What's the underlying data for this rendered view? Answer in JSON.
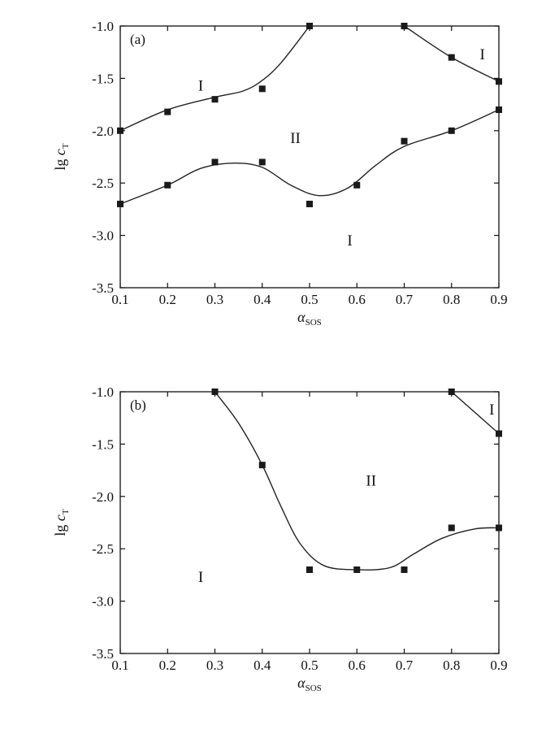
{
  "chart_data": [
    {
      "type": "scatter",
      "panel_label": "(a)",
      "xlabel_main": "α",
      "xlabel_sub": "SOS",
      "ylabel_main": "lg c",
      "ylabel_sub": "T",
      "xlim": [
        0.1,
        0.9
      ],
      "ylim": [
        -3.5,
        -1.0
      ],
      "xticks": [
        "0.1",
        "0.2",
        "0.3",
        "0.4",
        "0.5",
        "0.6",
        "0.7",
        "0.8",
        "0.9"
      ],
      "yticks": [
        "-1.0",
        "-1.5",
        "-2.0",
        "-2.5",
        "-3.0",
        "-3.5"
      ],
      "series": [
        {
          "x": [
            0.1,
            0.2,
            0.3,
            0.4,
            0.5
          ],
          "y": [
            -2.0,
            -1.82,
            -1.7,
            -1.6,
            -1.0
          ],
          "curve": [
            [
              0.1,
              -2.0
            ],
            [
              0.2,
              -1.8
            ],
            [
              0.3,
              -1.68
            ],
            [
              0.36,
              -1.62
            ],
            [
              0.4,
              -1.52
            ],
            [
              0.44,
              -1.35
            ],
            [
              0.5,
              -1.0
            ]
          ]
        },
        {
          "x": [
            0.7,
            0.8,
            0.9
          ],
          "y": [
            -1.0,
            -1.3,
            -1.53
          ],
          "curve": [
            [
              0.7,
              -1.0
            ],
            [
              0.8,
              -1.3
            ],
            [
              0.9,
              -1.53
            ]
          ]
        },
        {
          "x": [
            0.1,
            0.2,
            0.3,
            0.4,
            0.5,
            0.6,
            0.7,
            0.8,
            0.9
          ],
          "y": [
            -2.7,
            -2.52,
            -2.3,
            -2.3,
            -2.7,
            -2.52,
            -2.1,
            -2.0,
            -1.8
          ],
          "curve": [
            [
              0.1,
              -2.7
            ],
            [
              0.2,
              -2.52
            ],
            [
              0.27,
              -2.36
            ],
            [
              0.34,
              -2.31
            ],
            [
              0.4,
              -2.35
            ],
            [
              0.46,
              -2.52
            ],
            [
              0.52,
              -2.62
            ],
            [
              0.58,
              -2.55
            ],
            [
              0.64,
              -2.33
            ],
            [
              0.7,
              -2.15
            ],
            [
              0.8,
              -2.0
            ],
            [
              0.9,
              -1.8
            ]
          ]
        }
      ],
      "regions": [
        {
          "label": "I",
          "x": 0.27,
          "y": -1.57
        },
        {
          "label": "II",
          "x": 0.47,
          "y": -2.07
        },
        {
          "label": "I",
          "x": 0.585,
          "y": -3.05
        },
        {
          "label": "I",
          "x": 0.865,
          "y": -1.27
        }
      ]
    },
    {
      "type": "scatter",
      "panel_label": "(b)",
      "xlabel_main": "α",
      "xlabel_sub": "SOS",
      "ylabel_main": "lg c",
      "ylabel_sub": "T",
      "xlim": [
        0.1,
        0.9
      ],
      "ylim": [
        -3.5,
        -1.0
      ],
      "xticks": [
        "0.1",
        "0.2",
        "0.3",
        "0.4",
        "0.5",
        "0.6",
        "0.7",
        "0.8",
        "0.9"
      ],
      "yticks": [
        "-1.0",
        "-1.5",
        "-2.0",
        "-2.5",
        "-3.0",
        "-3.5"
      ],
      "series": [
        {
          "x": [
            0.3,
            0.4,
            0.5,
            0.6,
            0.7,
            0.8,
            0.9
          ],
          "y": [
            -1.0,
            -1.7,
            -2.7,
            -2.7,
            -2.7,
            -2.3,
            -2.3
          ],
          "curve": [
            [
              0.3,
              -1.0
            ],
            [
              0.35,
              -1.3
            ],
            [
              0.4,
              -1.7
            ],
            [
              0.44,
              -2.1
            ],
            [
              0.48,
              -2.45
            ],
            [
              0.53,
              -2.66
            ],
            [
              0.6,
              -2.7
            ],
            [
              0.67,
              -2.68
            ],
            [
              0.72,
              -2.55
            ],
            [
              0.78,
              -2.4
            ],
            [
              0.85,
              -2.31
            ],
            [
              0.9,
              -2.3
            ]
          ]
        },
        {
          "x": [
            0.8,
            0.9
          ],
          "y": [
            -1.0,
            -1.4
          ],
          "curve": [
            [
              0.8,
              -1.0
            ],
            [
              0.9,
              -1.4
            ]
          ]
        }
      ],
      "regions": [
        {
          "label": "II",
          "x": 0.63,
          "y": -1.85
        },
        {
          "label": "I",
          "x": 0.27,
          "y": -2.77
        },
        {
          "label": "I",
          "x": 0.885,
          "y": -1.17
        }
      ]
    }
  ]
}
